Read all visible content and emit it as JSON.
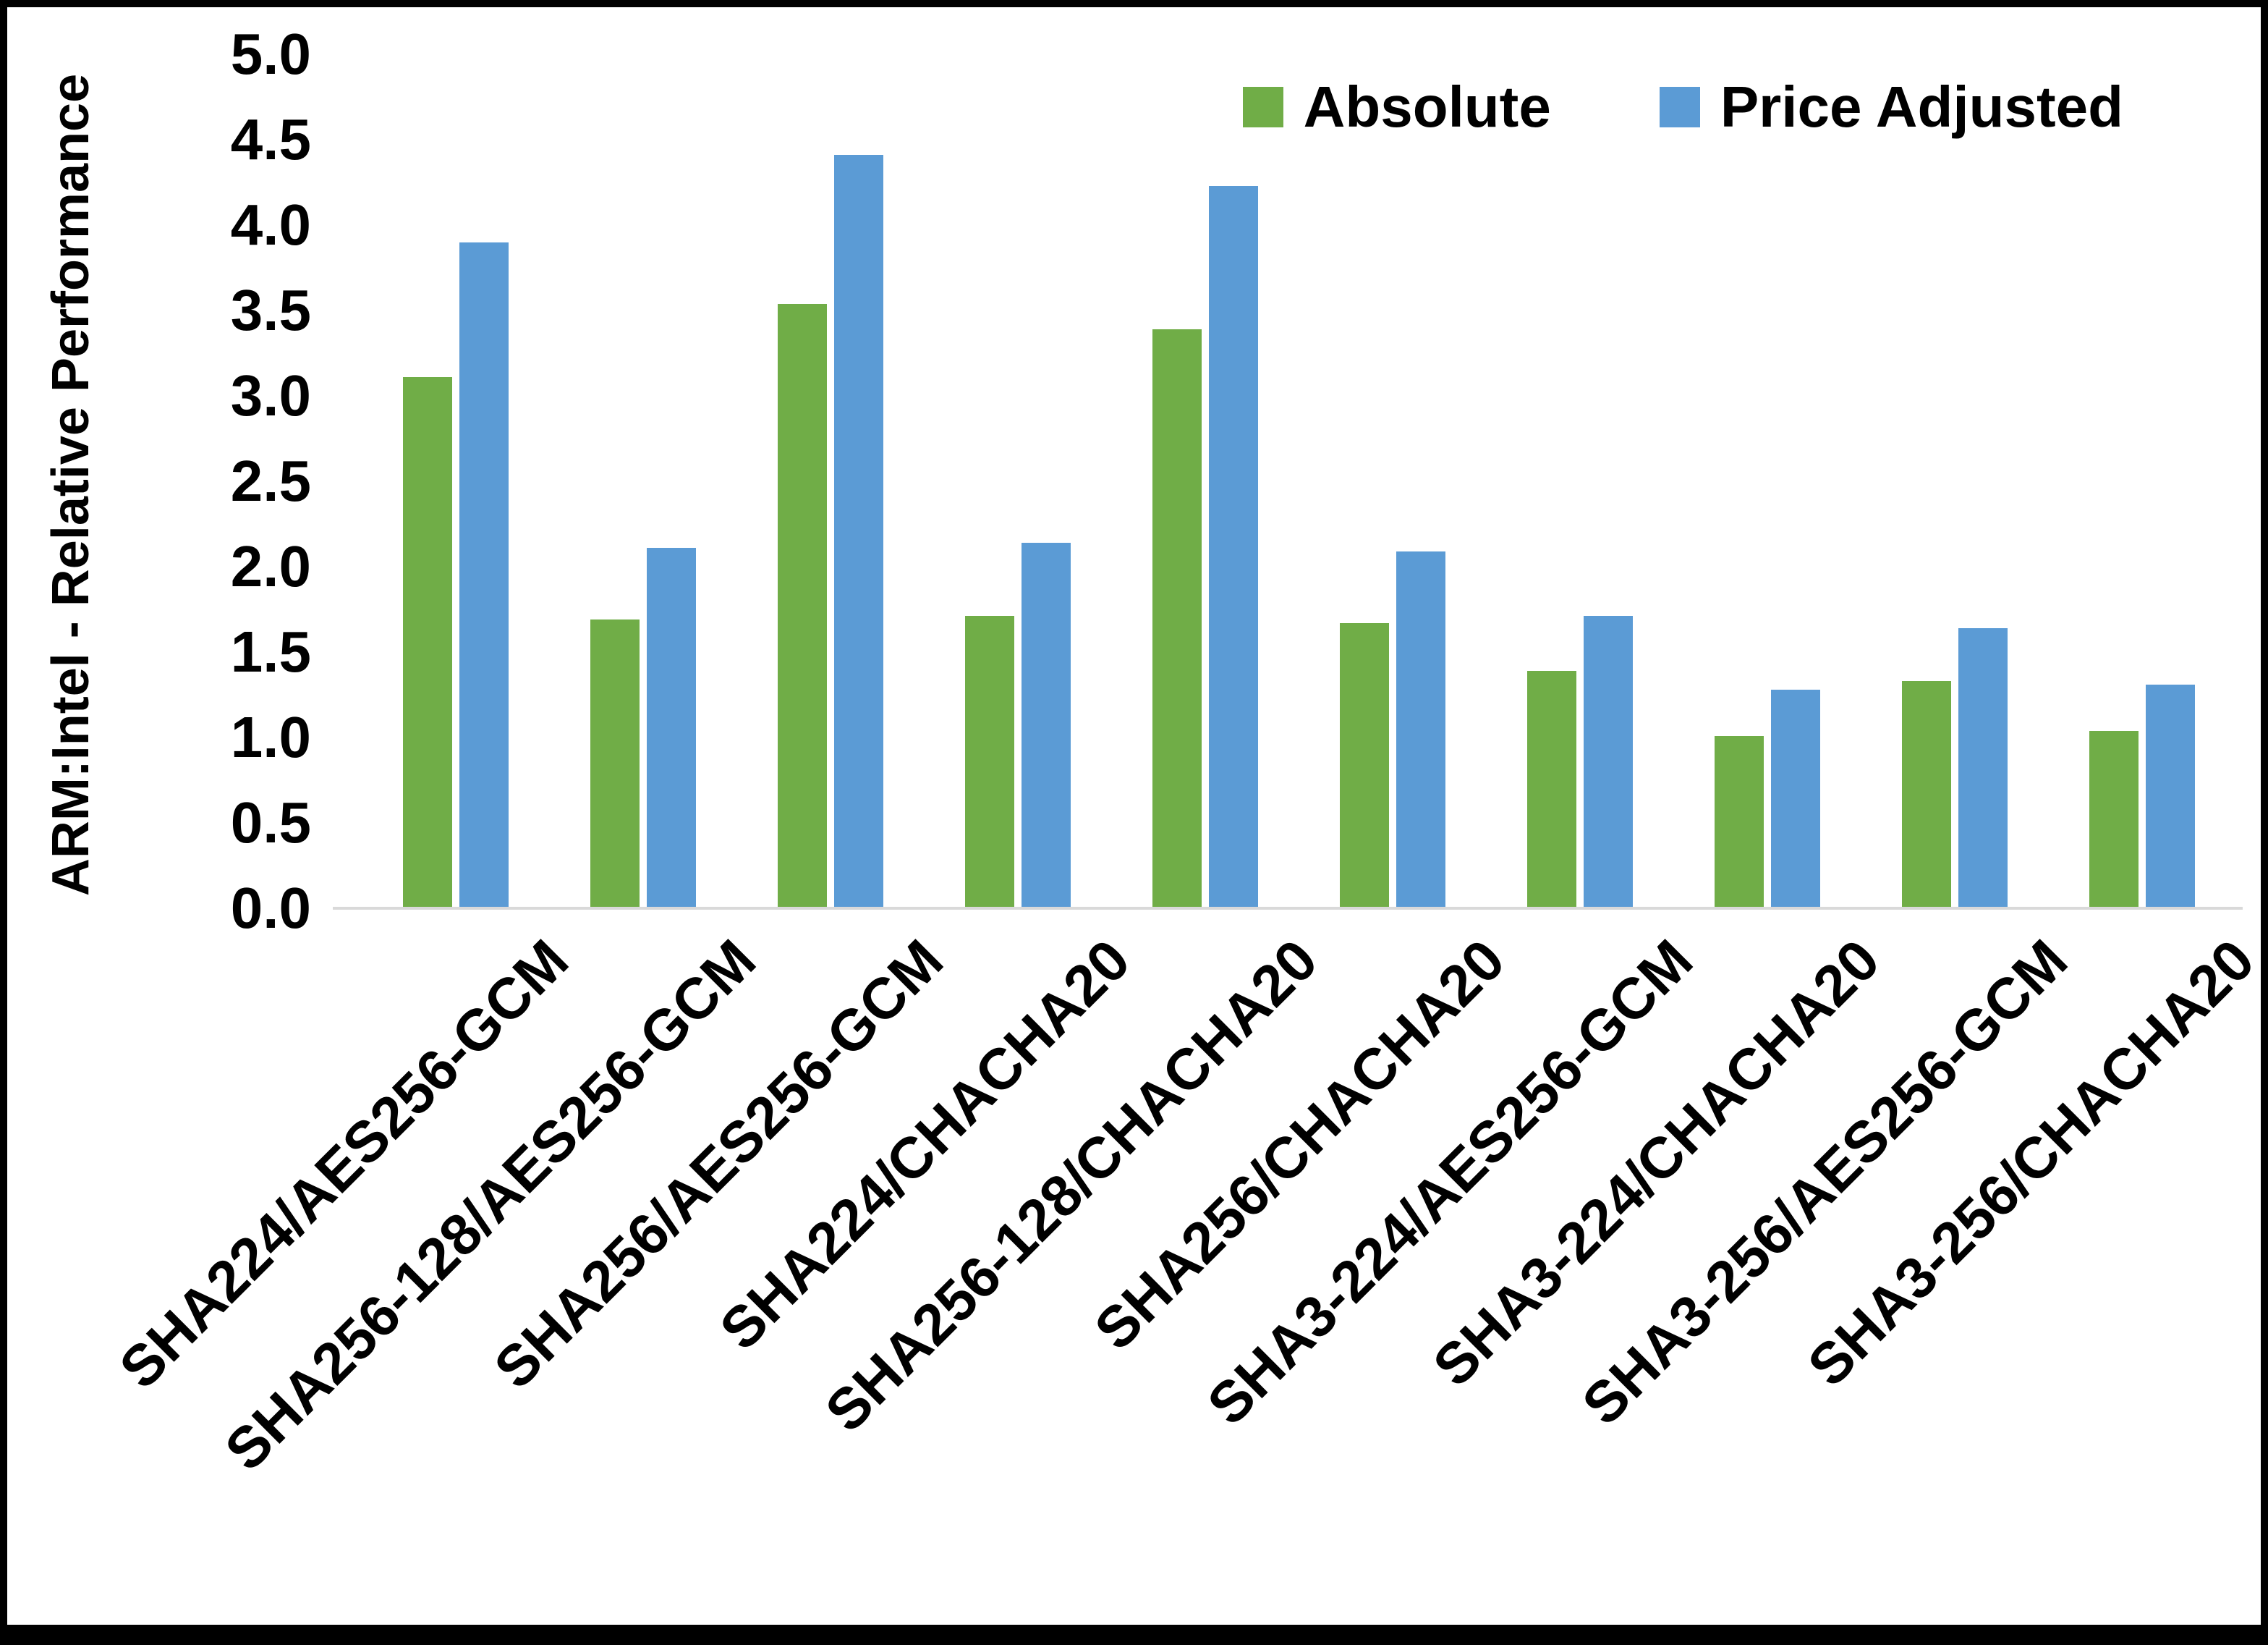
{
  "figure": {
    "background": "#ffffff",
    "border_color": "#000000",
    "text_color": "#000000"
  },
  "chart_data": {
    "type": "bar",
    "title": "",
    "xlabel": "",
    "ylabel": "ARM:Intel - Relative Performance",
    "ylim": [
      0,
      5
    ],
    "ytick_step": 0.5,
    "yticks": [
      "0.0",
      "0.5",
      "1.0",
      "1.5",
      "2.0",
      "2.5",
      "3.0",
      "3.5",
      "4.0",
      "4.5",
      "5.0"
    ],
    "grid": false,
    "legend_position": "top-right",
    "axis_line_color": "#D9D9D9",
    "categories": [
      "SHA224/AES256-GCM",
      "SHA256-128/AES256-GCM",
      "SHA256/AES256-GCM",
      "SHA224/CHACHA20",
      "SHA256-128/CHACHA20",
      "SHA256/CHACHA20",
      "SHA3-224/AES256-GCM",
      "SHA3-224/CHACHA20",
      "SHA3-256/AES256-GCM",
      "SHA3-256/CHACHA20"
    ],
    "series": [
      {
        "name": "Absolute",
        "color": "#70AD47",
        "values": [
          3.11,
          1.69,
          3.54,
          1.71,
          3.39,
          1.67,
          1.39,
          1.01,
          1.33,
          1.04
        ]
      },
      {
        "name": "Price Adjusted",
        "color": "#5B9BD5",
        "values": [
          3.9,
          2.11,
          4.41,
          2.14,
          4.23,
          2.09,
          1.71,
          1.28,
          1.64,
          1.31
        ]
      }
    ]
  }
}
